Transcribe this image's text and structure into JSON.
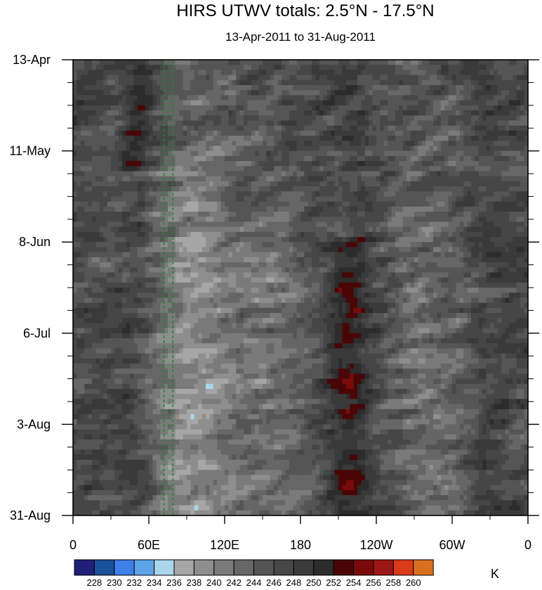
{
  "chart_data": {
    "type": "heatmap",
    "title": "HIRS UTWV totals: 2.5°N - 17.5°N",
    "subtitle": "13-Apr-2011 to 31-Aug-2011",
    "x_ticks": [
      {
        "label": "0",
        "lon": 0
      },
      {
        "label": "60E",
        "lon": 60
      },
      {
        "label": "120E",
        "lon": 120
      },
      {
        "label": "180",
        "lon": 180
      },
      {
        "label": "120W",
        "lon": 240
      },
      {
        "label": "60W",
        "lon": 300
      },
      {
        "label": "0",
        "lon": 360
      }
    ],
    "x_range": [
      0,
      360
    ],
    "y_ticks": [
      {
        "label": "13-Apr",
        "day": 0
      },
      {
        "label": "11-May",
        "day": 28
      },
      {
        "label": "8-Jun",
        "day": 56
      },
      {
        "label": "6-Jul",
        "day": 84
      },
      {
        "label": "3-Aug",
        "day": 112
      },
      {
        "label": "31-Aug",
        "day": 140
      }
    ],
    "y_range": [
      0,
      140
    ],
    "y_minor_step_days": 7,
    "reference_lines_lon": [
      72,
      79
    ],
    "colorbar": {
      "unit": "K",
      "levels": [
        "228",
        "230",
        "232",
        "234",
        "236",
        "238",
        "240",
        "242",
        "244",
        "246",
        "248",
        "250",
        "252",
        "254",
        "256",
        "258",
        "260"
      ],
      "colors": [
        "#1f1f7a",
        "#1a4f9a",
        "#3d7ee8",
        "#5ea4ea",
        "#a9d6ec",
        "#a6a6a6",
        "#8e8e8e",
        "#7a7a7a",
        "#666666",
        "#555555",
        "#464646",
        "#3a3a3a",
        "#2c2c2c",
        "#4a0606",
        "#7a0a0a",
        "#9c1616",
        "#d83a1a",
        "#d9701f"
      ]
    }
  }
}
